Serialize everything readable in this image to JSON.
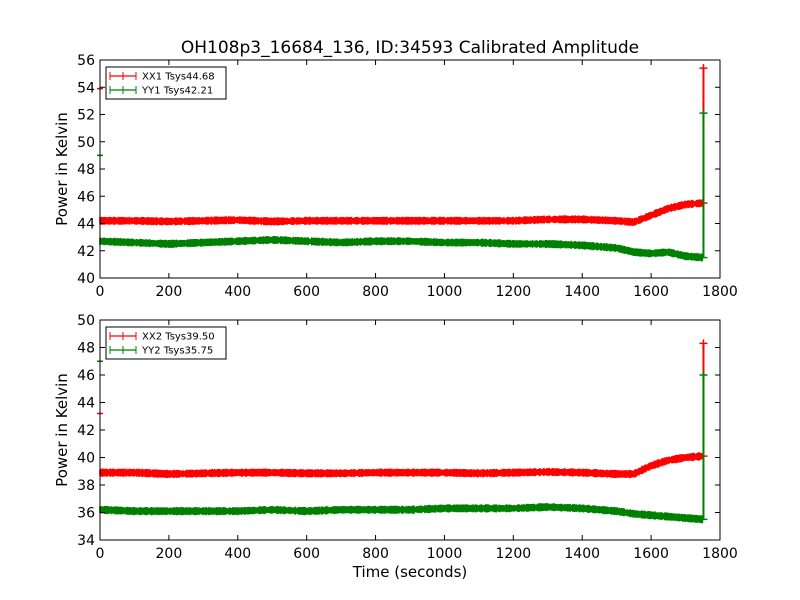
{
  "figure": {
    "title": "OH108p3_16684_136, ID:34593 Calibrated Amplitude"
  },
  "chart_data": [
    {
      "type": "line",
      "title": "OH108p3_16684_136, ID:34593 Calibrated Amplitude",
      "xlabel": "",
      "ylabel": "Power in Kelvin",
      "xlim": [
        0,
        1800
      ],
      "ylim": [
        40,
        56
      ],
      "xticks": [
        "0",
        "200",
        "400",
        "600",
        "800",
        "1000",
        "1200",
        "1400",
        "1600",
        "1800"
      ],
      "yticks": [
        "40",
        "42",
        "44",
        "46",
        "48",
        "50",
        "52",
        "54",
        "56"
      ],
      "legend_position": "top-left",
      "grid": false,
      "series": [
        {
          "name": "XX1 Tsys44.68",
          "color": "#ff0000",
          "x": [
            0,
            100,
            200,
            300,
            400,
            500,
            600,
            700,
            800,
            900,
            1000,
            1100,
            1200,
            1300,
            1400,
            1500,
            1550,
            1600,
            1650,
            1700,
            1750
          ],
          "y": [
            44.2,
            44.2,
            44.15,
            44.2,
            44.25,
            44.15,
            44.2,
            44.2,
            44.2,
            44.2,
            44.2,
            44.2,
            44.2,
            44.3,
            44.3,
            44.2,
            44.1,
            44.6,
            45.1,
            45.4,
            45.5
          ]
        },
        {
          "name": "YY1 Tsys42.21",
          "color": "#008000",
          "x": [
            0,
            100,
            200,
            300,
            400,
            500,
            600,
            700,
            800,
            900,
            1000,
            1100,
            1200,
            1300,
            1400,
            1500,
            1550,
            1600,
            1650,
            1700,
            1750
          ],
          "y": [
            42.7,
            42.6,
            42.5,
            42.6,
            42.7,
            42.8,
            42.7,
            42.6,
            42.7,
            42.7,
            42.6,
            42.6,
            42.5,
            42.5,
            42.4,
            42.2,
            41.9,
            41.8,
            41.9,
            41.6,
            41.5
          ]
        }
      ],
      "end_spikes": [
        {
          "series": "XX1 Tsys44.68",
          "x": 1752,
          "y_low": 45.5,
          "y_high": 55.4
        },
        {
          "series": "YY1 Tsys42.21",
          "x": 1752,
          "y_low": 41.5,
          "y_high": 52.1
        }
      ],
      "start_markers": [
        {
          "color": "#ff0000",
          "y": 53.9
        },
        {
          "color": "#008000",
          "y": 49.0
        }
      ]
    },
    {
      "type": "line",
      "title": "",
      "xlabel": "Time (seconds)",
      "ylabel": "Power in Kelvin",
      "xlim": [
        0,
        1800
      ],
      "ylim": [
        34,
        50
      ],
      "xticks": [
        "0",
        "200",
        "400",
        "600",
        "800",
        "1000",
        "1200",
        "1400",
        "1600",
        "1800"
      ],
      "yticks": [
        "34",
        "36",
        "38",
        "40",
        "42",
        "44",
        "46",
        "48",
        "50"
      ],
      "legend_position": "top-left",
      "grid": false,
      "series": [
        {
          "name": "XX2 Tsys39.50",
          "color": "#ff0000",
          "x": [
            0,
            100,
            200,
            300,
            400,
            500,
            600,
            700,
            800,
            900,
            1000,
            1100,
            1200,
            1300,
            1400,
            1500,
            1550,
            1600,
            1650,
            1700,
            1750
          ],
          "y": [
            38.9,
            38.9,
            38.8,
            38.85,
            38.9,
            38.9,
            38.85,
            38.85,
            38.9,
            38.9,
            38.9,
            38.85,
            38.9,
            38.95,
            38.9,
            38.8,
            38.8,
            39.4,
            39.8,
            40.0,
            40.1
          ]
        },
        {
          "name": "YY2 Tsys35.75",
          "color": "#008000",
          "x": [
            0,
            100,
            200,
            300,
            400,
            500,
            600,
            700,
            800,
            900,
            1000,
            1100,
            1200,
            1300,
            1400,
            1500,
            1550,
            1600,
            1650,
            1700,
            1750
          ],
          "y": [
            36.2,
            36.1,
            36.1,
            36.1,
            36.1,
            36.2,
            36.1,
            36.2,
            36.2,
            36.2,
            36.3,
            36.3,
            36.3,
            36.4,
            36.3,
            36.1,
            35.9,
            35.8,
            35.7,
            35.6,
            35.5
          ]
        }
      ],
      "end_spikes": [
        {
          "series": "XX2 Tsys39.50",
          "x": 1752,
          "y_low": 40.1,
          "y_high": 48.3
        },
        {
          "series": "YY2 Tsys35.75",
          "x": 1752,
          "y_low": 35.5,
          "y_high": 46.0
        }
      ],
      "start_markers": [
        {
          "color": "#008000",
          "y": 47.0
        },
        {
          "color": "#ff0000",
          "y": 43.2
        }
      ]
    }
  ]
}
